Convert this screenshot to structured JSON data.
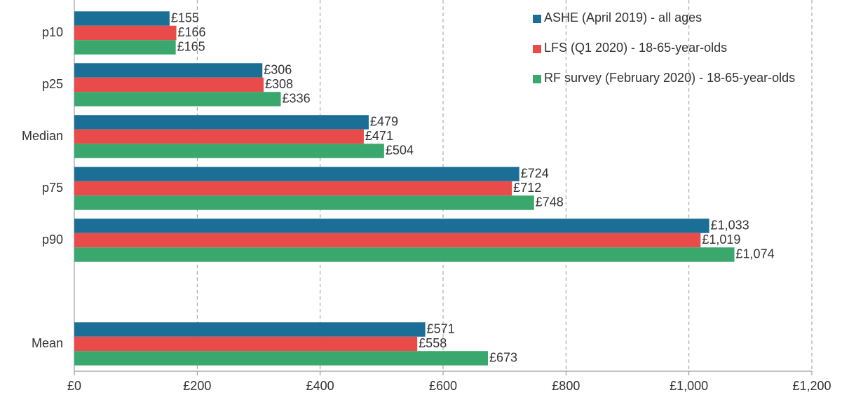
{
  "chart_data": {
    "type": "hbar",
    "categories": [
      "p10",
      "p25",
      "Median",
      "p75",
      "p90",
      null,
      "Mean"
    ],
    "series": [
      {
        "name": "ASHE (April 2019) - all ages",
        "color": "#1b6f96",
        "values": [
          155,
          306,
          479,
          724,
          1033,
          null,
          571
        ],
        "value_labels": [
          "£155",
          "£306",
          "£479",
          "£724",
          "£1,033",
          null,
          "£571"
        ]
      },
      {
        "name": "LFS (Q1 2020) - 18-65-year-olds",
        "color": "#e94b4b",
        "values": [
          166,
          308,
          471,
          712,
          1019,
          null,
          558
        ],
        "value_labels": [
          "£166",
          "£308",
          "£471",
          "£712",
          "£1,019",
          null,
          "£558"
        ]
      },
      {
        "name": "RF survey (February 2020) - 18-65-year-olds",
        "color": "#3aa76d",
        "values": [
          165,
          336,
          504,
          748,
          1074,
          null,
          673
        ],
        "value_labels": [
          "£165",
          "£336",
          "£504",
          "£748",
          "£1,074",
          null,
          "£673"
        ]
      }
    ],
    "xlim": [
      0,
      1200
    ],
    "xticks": [
      {
        "value": 0,
        "label": "£0"
      },
      {
        "value": 200,
        "label": "£200"
      },
      {
        "value": 400,
        "label": "£400"
      },
      {
        "value": 600,
        "label": "£600"
      },
      {
        "value": 800,
        "label": "£800"
      },
      {
        "value": 1000,
        "label": "£1,000"
      },
      {
        "value": 1200,
        "label": "£1,200"
      }
    ],
    "grid": true,
    "legend": "top-right"
  }
}
